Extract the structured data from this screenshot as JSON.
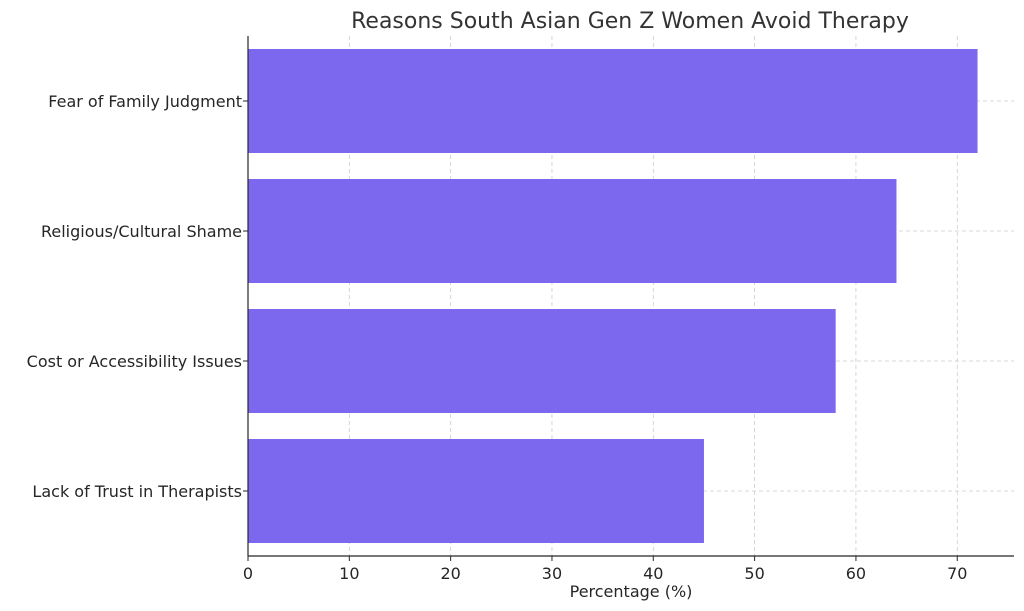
{
  "chart_data": {
    "type": "bar",
    "orientation": "horizontal",
    "title": "Reasons South Asian Gen Z Women Avoid Therapy",
    "xlabel": "Percentage (%)",
    "ylabel": "",
    "categories": [
      "Fear of Family Judgment",
      "Religious/Cultural Shame",
      "Cost or Accessibility Issues",
      "Lack of Trust in Therapists"
    ],
    "values": [
      72,
      64,
      58,
      45
    ],
    "xlim": [
      0,
      75.6
    ],
    "xticks": [
      0,
      10,
      20,
      30,
      40,
      50,
      60,
      70
    ],
    "grid": true,
    "bar_color": "#7b68ee"
  }
}
